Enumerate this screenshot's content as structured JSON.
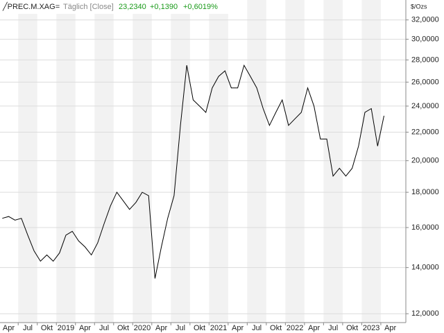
{
  "chart_data": {
    "type": "line",
    "header": {
      "symbol": "PREC.M.XAG=",
      "mode": "Täglich [Close]",
      "last": "23,2340",
      "change": "+0,1390",
      "change_pct": "+0,6019%"
    },
    "y_axis_label": "$/Ozs",
    "log_scale": true,
    "grid": true,
    "x": [
      "2018-03",
      "2018-04",
      "2018-05",
      "2018-06",
      "2018-07",
      "2018-08",
      "2018-09",
      "2018-10",
      "2018-11",
      "2018-12",
      "2019-01",
      "2019-02",
      "2019-03",
      "2019-04",
      "2019-05",
      "2019-06",
      "2019-07",
      "2019-08",
      "2019-09",
      "2019-10",
      "2019-11",
      "2019-12",
      "2020-01",
      "2020-02",
      "2020-03",
      "2020-04",
      "2020-05",
      "2020-06",
      "2020-07",
      "2020-08",
      "2020-09",
      "2020-10",
      "2020-11",
      "2020-12",
      "2021-01",
      "2021-02",
      "2021-03",
      "2021-04",
      "2021-05",
      "2021-06",
      "2021-07",
      "2021-08",
      "2021-09",
      "2021-10",
      "2021-11",
      "2021-12",
      "2022-01",
      "2022-02",
      "2022-03",
      "2022-04",
      "2022-05",
      "2022-06",
      "2022-07",
      "2022-08",
      "2022-09",
      "2022-10",
      "2022-11",
      "2022-12",
      "2023-01",
      "2023-02",
      "2023-03"
    ],
    "series": [
      {
        "name": "PREC.M.XAG=",
        "color": "#000000",
        "values": [
          16.5,
          16.6,
          16.4,
          16.5,
          15.6,
          14.8,
          14.3,
          14.6,
          14.3,
          14.7,
          15.6,
          15.8,
          15.3,
          15.0,
          14.6,
          15.2,
          16.2,
          17.2,
          18.0,
          17.5,
          17.0,
          17.4,
          18.0,
          17.8,
          13.5,
          15.0,
          16.5,
          17.8,
          22.5,
          27.5,
          24.5,
          24.0,
          23.5,
          25.5,
          26.5,
          27.0,
          25.5,
          25.5,
          27.5,
          26.5,
          25.5,
          23.8,
          22.5,
          23.5,
          24.5,
          22.5,
          23.0,
          23.5,
          25.5,
          24.0,
          21.5,
          21.5,
          19.0,
          19.5,
          19.0,
          19.5,
          21.0,
          23.5,
          23.8,
          21.0,
          23.234
        ]
      }
    ],
    "ylim": [
      11.65,
      34.2
    ],
    "yticks": [
      {
        "value": 12,
        "label": "12,0000"
      },
      {
        "value": 14,
        "label": "14,0000"
      },
      {
        "value": 16,
        "label": "16,0000"
      },
      {
        "value": 18,
        "label": "18,0000"
      },
      {
        "value": 20,
        "label": "20,0000"
      },
      {
        "value": 22,
        "label": "22,0000"
      },
      {
        "value": 24,
        "label": "24,0000"
      },
      {
        "value": 26,
        "label": "26,0000"
      },
      {
        "value": 28,
        "label": "28,0000"
      },
      {
        "value": 30,
        "label": "30,0000"
      },
      {
        "value": 32,
        "label": "32,0000"
      }
    ],
    "xticks": [
      {
        "value": "2018-04",
        "label": "Apr"
      },
      {
        "value": "2018-07",
        "label": "Jul"
      },
      {
        "value": "2018-10",
        "label": "Okt"
      },
      {
        "value": "2019-01",
        "label": "2019"
      },
      {
        "value": "2019-04",
        "label": "Apr"
      },
      {
        "value": "2019-07",
        "label": "Jul"
      },
      {
        "value": "2019-10",
        "label": "Okt"
      },
      {
        "value": "2020-01",
        "label": "2020"
      },
      {
        "value": "2020-04",
        "label": "Apr"
      },
      {
        "value": "2020-07",
        "label": "Jul"
      },
      {
        "value": "2020-10",
        "label": "Okt"
      },
      {
        "value": "2021-01",
        "label": "2021"
      },
      {
        "value": "2021-04",
        "label": "Apr"
      },
      {
        "value": "2021-07",
        "label": "Jul"
      },
      {
        "value": "2021-10",
        "label": "Okt"
      },
      {
        "value": "2022-01",
        "label": "2022"
      },
      {
        "value": "2022-04",
        "label": "Apr"
      },
      {
        "value": "2022-07",
        "label": "Jul"
      },
      {
        "value": "2022-10",
        "label": "Okt"
      },
      {
        "value": "2023-01",
        "label": "2023"
      },
      {
        "value": "2023-04",
        "label": "Apr"
      }
    ]
  }
}
